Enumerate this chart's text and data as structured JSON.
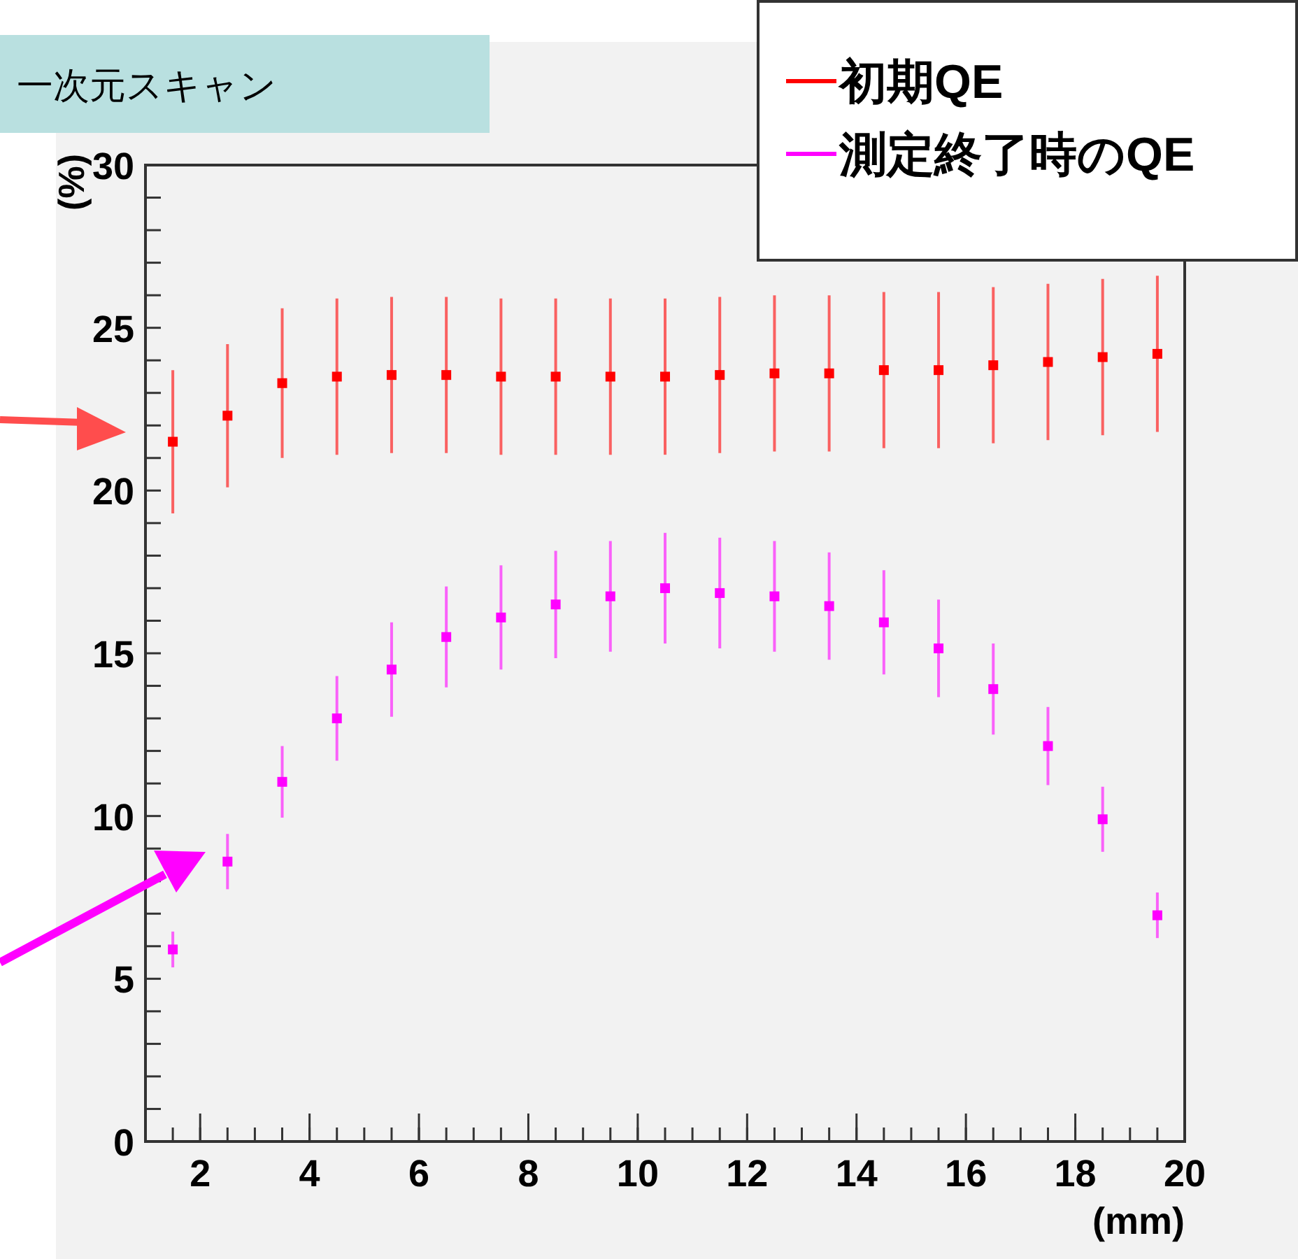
{
  "chart_data": {
    "type": "scatter",
    "title": "一次元スキャン",
    "xlabel": "(mm)",
    "ylabel": "(%)",
    "marker": "square",
    "legend": "top right",
    "grid": false,
    "x": [
      1.5,
      2.5,
      3.5,
      4.5,
      5.5,
      6.5,
      7.5,
      8.5,
      9.5,
      10.5,
      11.5,
      12.5,
      13.5,
      14.5,
      15.5,
      16.5,
      17.5,
      18.5,
      19.5
    ],
    "xlim": [
      1,
      20
    ],
    "ylim": [
      0,
      30
    ],
    "xticks": [
      2,
      4,
      6,
      8,
      10,
      12,
      14,
      16,
      18,
      20
    ],
    "yticks": [
      0,
      5,
      10,
      15,
      20,
      25,
      30
    ],
    "series": [
      {
        "name": "初期QE",
        "color": "#ff0000",
        "values": [
          21.5,
          22.3,
          23.3,
          23.5,
          23.55,
          23.55,
          23.5,
          23.5,
          23.5,
          23.5,
          23.55,
          23.6,
          23.6,
          23.7,
          23.7,
          23.85,
          23.95,
          24.1,
          24.2
        ],
        "errors": [
          2.2,
          2.2,
          2.3,
          2.4,
          2.4,
          2.4,
          2.4,
          2.4,
          2.4,
          2.4,
          2.4,
          2.4,
          2.4,
          2.4,
          2.4,
          2.4,
          2.4,
          2.4,
          2.4
        ]
      },
      {
        "name": "測定終了時のQE",
        "color": "#ff00ff",
        "values": [
          5.9,
          8.6,
          11.05,
          13.0,
          14.5,
          15.5,
          16.1,
          16.5,
          16.75,
          17.0,
          16.85,
          16.75,
          16.45,
          15.95,
          15.15,
          13.9,
          12.15,
          9.9,
          6.95
        ],
        "errors": [
          0.55,
          0.85,
          1.1,
          1.3,
          1.45,
          1.55,
          1.6,
          1.65,
          1.7,
          1.7,
          1.7,
          1.7,
          1.65,
          1.6,
          1.5,
          1.4,
          1.2,
          1.0,
          0.7
        ]
      }
    ]
  }
}
